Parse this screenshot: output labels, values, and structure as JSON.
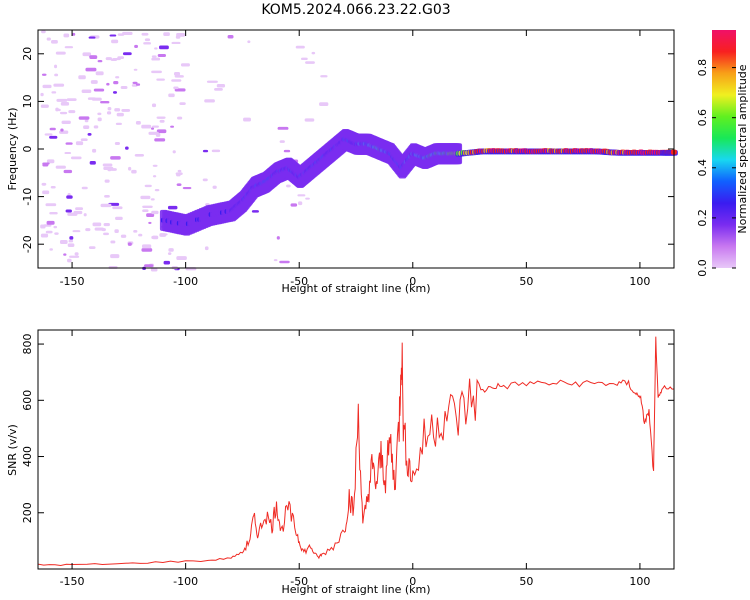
{
  "title": "KOM5.2024.066.23.22.G03",
  "colors": {
    "snr_line": "#ef2b24",
    "axes": "#000000",
    "background": "#ffffff",
    "colormap": [
      "#e8c8f8",
      "#c878f0",
      "#7a2cf0",
      "#3a1cf0",
      "#1060ff",
      "#18d8f0",
      "#18e858",
      "#60f020",
      "#f0f020",
      "#f8a018",
      "#f82020",
      "#f01068"
    ]
  },
  "chart_data": [
    {
      "type": "heatmap",
      "xlabel": "Height of straight line (km)",
      "ylabel": "Frequency (Hz)",
      "xlim": [
        -165,
        115
      ],
      "ylim": [
        -25,
        25
      ],
      "xticks": [
        -150,
        -100,
        -50,
        0,
        50,
        100
      ],
      "yticks": [
        -20,
        -10,
        0,
        10,
        20
      ],
      "colorbar": {
        "label": "Normalized spectral amplitude",
        "range": [
          0,
          0.95
        ],
        "ticks": [
          "0.0",
          "0.2",
          "0.4",
          "0.6",
          "0.8"
        ]
      },
      "ridge": {
        "x": [
          -110,
          -100,
          -90,
          -80,
          -75,
          -70,
          -65,
          -60,
          -55,
          -50,
          -45,
          -40,
          -35,
          -30,
          -25,
          -20,
          -15,
          -10,
          -5,
          0,
          5,
          10,
          15,
          20,
          30,
          40,
          50,
          60,
          70,
          80,
          90,
          100,
          110,
          115
        ],
        "freq": [
          -15,
          -16,
          -14,
          -13,
          -11,
          -8,
          -7,
          -5,
          -4,
          -6,
          -4,
          -2,
          0,
          2,
          1,
          1,
          0,
          -1,
          -4,
          -1,
          -2,
          -1,
          -1,
          -1,
          -0.5,
          -0.5,
          -0.5,
          -0.5,
          -0.5,
          -0.5,
          -0.8,
          -0.8,
          -0.8,
          -0.8
        ],
        "amplitude": [
          0.25,
          0.2,
          0.2,
          0.22,
          0.25,
          0.3,
          0.35,
          0.3,
          0.3,
          0.28,
          0.3,
          0.3,
          0.28,
          0.25,
          0.3,
          0.4,
          0.45,
          0.3,
          0.3,
          0.35,
          0.4,
          0.45,
          0.5,
          0.65,
          0.85,
          0.88,
          0.9,
          0.85,
          0.88,
          0.9,
          0.85,
          0.88,
          0.9,
          0.85
        ]
      },
      "noise": {
        "x_range": [
          -165,
          -100
        ],
        "freq_range": [
          -25,
          25
        ],
        "amplitude": 0.05
      }
    },
    {
      "type": "line",
      "xlabel": "Height of straight line (km)",
      "ylabel": "SNR (v/v)",
      "xlim": [
        -165,
        115
      ],
      "ylim": [
        0,
        850
      ],
      "xticks": [
        -150,
        -100,
        -50,
        0,
        50,
        100
      ],
      "yticks": [
        200,
        400,
        600,
        800
      ],
      "series": [
        {
          "x": [
            -165,
            -150,
            -130,
            -110,
            -90,
            -80,
            -75,
            -72,
            -70,
            -68,
            -65,
            -62,
            -60,
            -58,
            -55,
            -52,
            -50,
            -48,
            -45,
            -42,
            -40,
            -35,
            -30,
            -28,
            -26,
            -24,
            -22,
            -20,
            -18,
            -16,
            -14,
            -12,
            -10,
            -8,
            -6,
            -5,
            -4,
            -2,
            0,
            5,
            10,
            15,
            20,
            25,
            30,
            35,
            40,
            50,
            60,
            70,
            80,
            90,
            95,
            98,
            100,
            102,
            104,
            106,
            107,
            108,
            110,
            115
          ],
          "y": [
            15,
            15,
            18,
            25,
            30,
            40,
            60,
            100,
            180,
            120,
            200,
            150,
            240,
            130,
            220,
            150,
            100,
            60,
            80,
            40,
            50,
            80,
            140,
            260,
            200,
            560,
            150,
            250,
            360,
            300,
            400,
            320,
            460,
            300,
            520,
            820,
            480,
            380,
            320,
            460,
            520,
            560,
            540,
            600,
            630,
            650,
            650,
            660,
            660,
            660,
            660,
            660,
            660,
            620,
            620,
            520,
            560,
            340,
            820,
            600,
            640,
            640
          ]
        }
      ]
    }
  ]
}
